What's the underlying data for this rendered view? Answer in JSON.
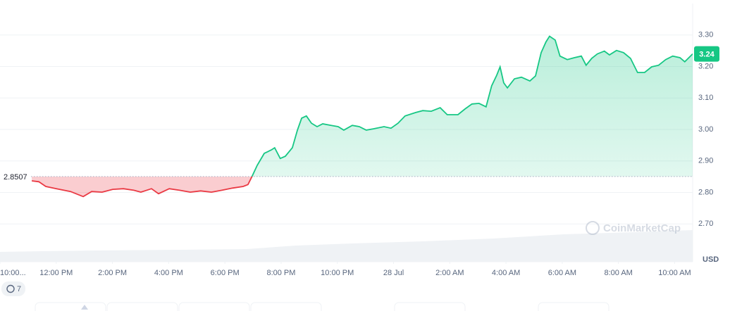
{
  "chart_data": {
    "type": "line",
    "x": [
      1.13,
      1.38,
      1.63,
      2.01,
      2.51,
      2.96,
      3.26,
      3.63,
      4.01,
      4.39,
      4.76,
      5.01,
      5.39,
      5.64,
      6.02,
      6.39,
      6.77,
      7.14,
      7.52,
      7.89,
      8.27,
      8.65,
      8.82,
      8.97,
      9.15,
      9.4,
      9.65,
      9.77,
      9.97,
      10.15,
      10.4,
      10.58,
      10.73,
      10.9,
      11.08,
      11.28,
      11.48,
      11.78,
      12.03,
      12.23,
      12.53,
      12.78,
      13.03,
      13.28,
      13.66,
      13.91,
      14.16,
      14.41,
      14.79,
      15.04,
      15.34,
      15.66,
      15.91,
      16.29,
      16.54,
      16.79,
      17.04,
      17.29,
      17.49,
      17.67,
      17.79,
      17.92,
      18.05,
      18.3,
      18.55,
      18.85,
      19.05,
      19.25,
      19.42,
      19.55,
      19.75,
      19.92,
      20.18,
      20.43,
      20.68,
      20.85,
      21.05,
      21.25,
      21.5,
      21.68,
      21.93,
      22.18,
      22.43,
      22.68,
      22.93,
      23.18,
      23.43,
      23.68,
      23.93,
      24.19,
      24.36,
      24.64
    ],
    "values": [
      2.837,
      2.834,
      2.819,
      2.812,
      2.803,
      2.787,
      2.803,
      2.801,
      2.81,
      2.812,
      2.807,
      2.801,
      2.812,
      2.796,
      2.812,
      2.807,
      2.801,
      2.805,
      2.801,
      2.807,
      2.814,
      2.819,
      2.825,
      2.852,
      2.886,
      2.924,
      2.935,
      2.942,
      2.908,
      2.915,
      2.942,
      2.998,
      3.036,
      3.043,
      3.02,
      3.009,
      3.018,
      3.013,
      3.009,
      2.998,
      3.013,
      3.009,
      2.998,
      3.002,
      3.009,
      3.004,
      3.02,
      3.043,
      3.054,
      3.06,
      3.058,
      3.069,
      3.047,
      3.047,
      3.065,
      3.081,
      3.083,
      3.072,
      3.139,
      3.172,
      3.199,
      3.148,
      3.132,
      3.161,
      3.166,
      3.154,
      3.17,
      3.244,
      3.278,
      3.296,
      3.284,
      3.233,
      3.222,
      3.228,
      3.233,
      3.204,
      3.226,
      3.24,
      3.249,
      3.237,
      3.251,
      3.244,
      3.226,
      3.181,
      3.181,
      3.199,
      3.204,
      3.222,
      3.233,
      3.228,
      3.215,
      3.24
    ],
    "up_color": "#16c784",
    "down_color": "#ea3943",
    "baseline": 2.8507,
    "last_price": 3.24,
    "xlim": [
      0,
      24.64
    ],
    "xticks": [
      {
        "value": 0,
        "label": "10:00..."
      },
      {
        "value": 2,
        "label": "12:00 PM"
      },
      {
        "value": 4,
        "label": "2:00 PM"
      },
      {
        "value": 6,
        "label": "4:00 PM"
      },
      {
        "value": 8,
        "label": "6:00 PM"
      },
      {
        "value": 10,
        "label": "8:00 PM"
      },
      {
        "value": 12,
        "label": "10:00 PM"
      },
      {
        "value": 14,
        "label": "28 Jul"
      },
      {
        "value": 16,
        "label": "2:00 AM"
      },
      {
        "value": 18,
        "label": "4:00 AM"
      },
      {
        "value": 20,
        "label": "6:00 AM"
      },
      {
        "value": 22,
        "label": "8:00 AM"
      },
      {
        "value": 24,
        "label": "10:00 AM"
      }
    ],
    "ylim": [
      2.58,
      3.4
    ],
    "yticks": [
      {
        "value": 2.7,
        "label": "2.70"
      },
      {
        "value": 2.8,
        "label": "2.80"
      },
      {
        "value": 2.9,
        "label": "2.90"
      },
      {
        "value": 3.0,
        "label": "3.00"
      },
      {
        "value": 3.1,
        "label": "3.10"
      },
      {
        "value": 3.2,
        "label": "3.20"
      },
      {
        "value": 3.3,
        "label": "3.30"
      }
    ],
    "grid": true,
    "y_unit": "USD",
    "watermark": "CoinMarketCap",
    "badge": "7"
  }
}
